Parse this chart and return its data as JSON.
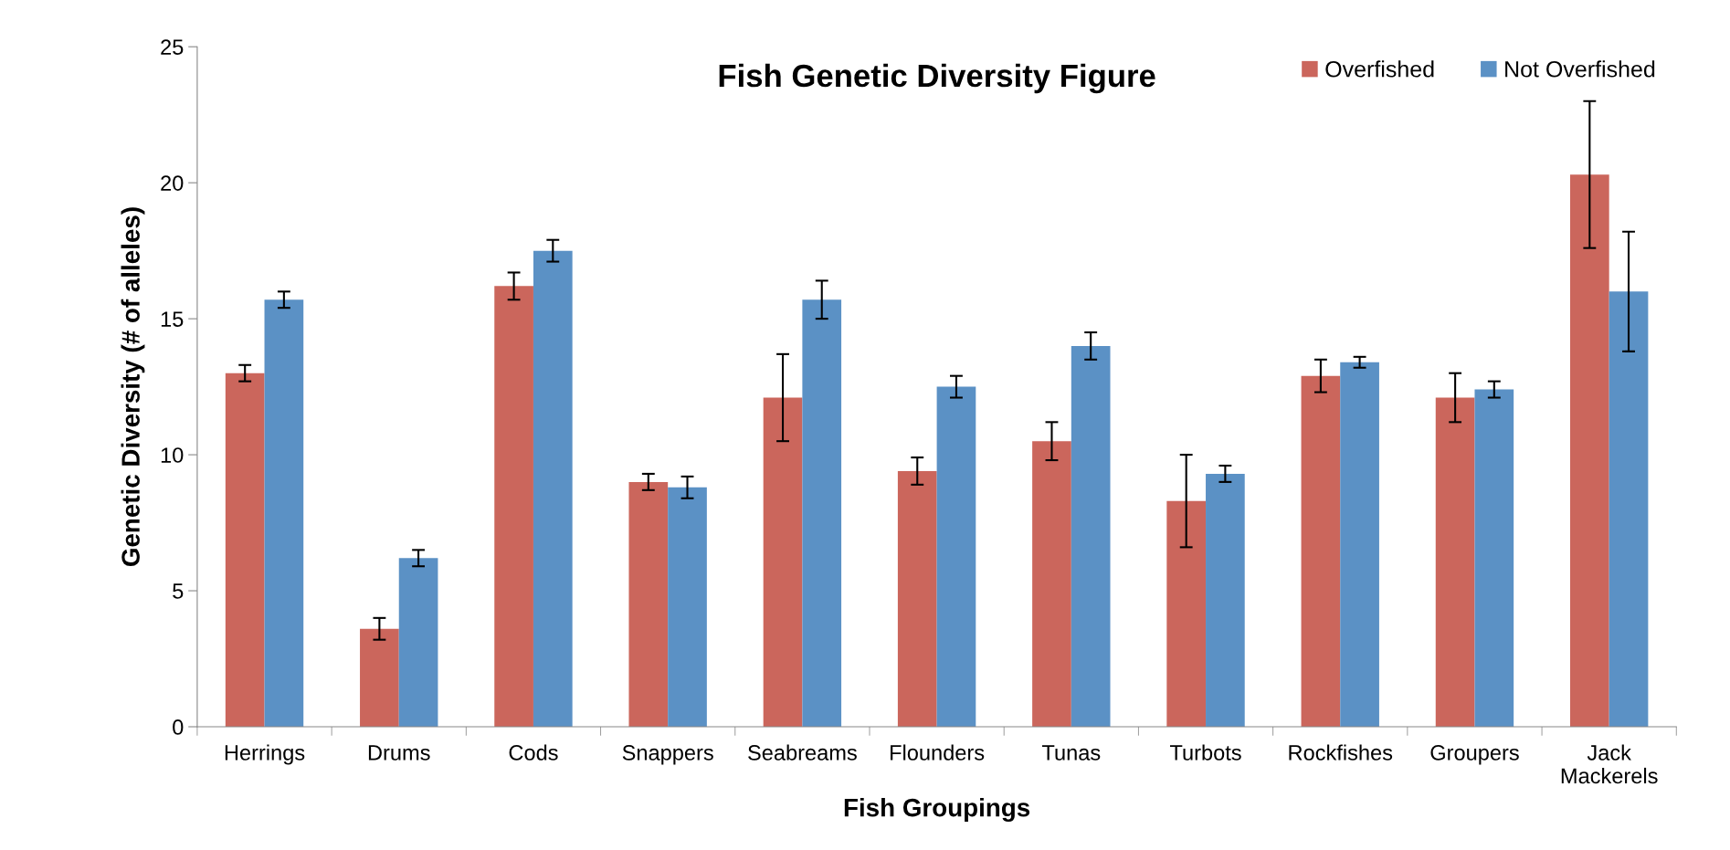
{
  "chart_data": {
    "type": "bar",
    "title": "Fish Genetic Diversity Figure",
    "xlabel": "Fish Groupings",
    "ylabel": "Genetic Diversity (# of alleles)",
    "categories": [
      "Herrings",
      "Drums",
      "Cods",
      "Snappers",
      "Seabreams",
      "Flounders",
      "Tunas",
      "Turbots",
      "Rockfishes",
      "Groupers",
      "Jack\nMackerels"
    ],
    "series": [
      {
        "name": "Overfished",
        "color": "#cb665c",
        "values": [
          13.0,
          3.6,
          16.2,
          9.0,
          12.1,
          9.4,
          10.5,
          8.3,
          12.9,
          12.1,
          20.3
        ],
        "errors": [
          0.3,
          0.4,
          0.5,
          0.3,
          1.6,
          0.5,
          0.7,
          1.7,
          0.6,
          0.9,
          2.7
        ]
      },
      {
        "name": "Not Overfished",
        "color": "#5b91c5",
        "values": [
          15.7,
          6.2,
          17.5,
          8.8,
          15.7,
          12.5,
          14.0,
          9.3,
          13.4,
          12.4,
          16.0
        ],
        "errors": [
          0.3,
          0.3,
          0.4,
          0.4,
          0.7,
          0.4,
          0.5,
          0.3,
          0.2,
          0.3,
          2.2
        ]
      }
    ],
    "ylim": [
      0,
      25
    ],
    "yticks": [
      0,
      5,
      10,
      15,
      20,
      25
    ],
    "grid": false,
    "legend": "top right"
  }
}
